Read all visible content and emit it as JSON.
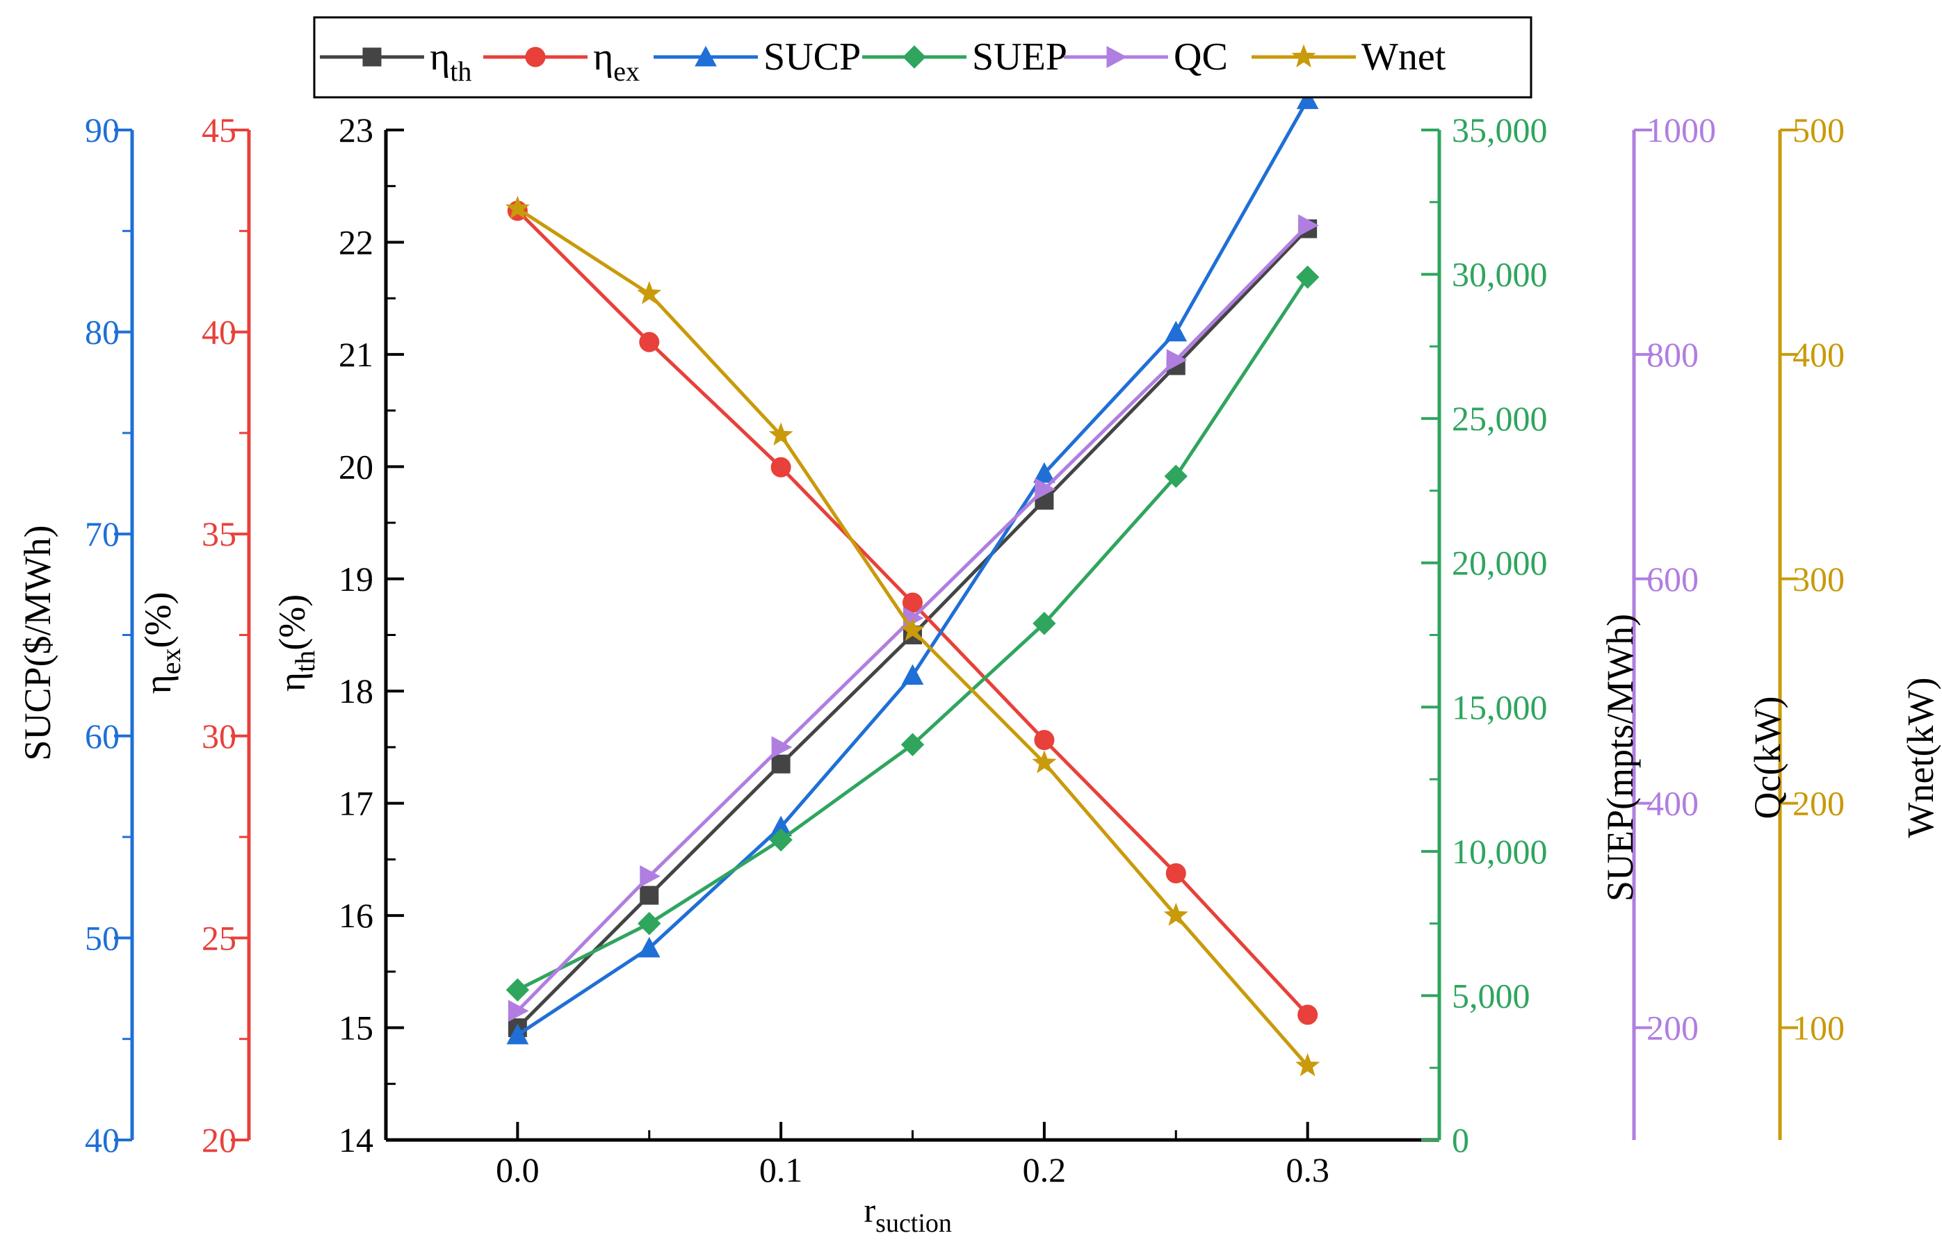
{
  "chart_data": {
    "type": "line",
    "x_label": "r",
    "x_label_sub": "suction",
    "x": [
      0.0,
      0.05,
      0.1,
      0.15,
      0.2,
      0.25,
      0.3
    ],
    "x_range": [
      -0.05,
      0.35
    ],
    "x_ticks": [
      0.0,
      0.1,
      0.2,
      0.3
    ],
    "x_tick_labels": [
      "0.0",
      "0.1",
      "0.2",
      "0.3"
    ],
    "grid": false,
    "legend_position": "top-center",
    "axes": [
      {
        "id": "eta_th",
        "label": "η",
        "label_sub": "th",
        "label_suffix": "(%)",
        "range": [
          14,
          23
        ],
        "ticks": [
          14,
          15,
          16,
          17,
          18,
          19,
          20,
          21,
          22,
          23
        ],
        "tick_labels": [
          "14",
          "15",
          "16",
          "17",
          "18",
          "19",
          "20",
          "21",
          "22",
          "23"
        ],
        "color": "#000000",
        "label_color": "#000000",
        "side": "left"
      },
      {
        "id": "eta_ex",
        "label": "η",
        "label_sub": "ex",
        "label_suffix": "(%)",
        "range": [
          20,
          45
        ],
        "ticks": [
          20,
          25,
          30,
          35,
          40,
          45
        ],
        "tick_labels": [
          "20",
          "25",
          "30",
          "35",
          "40",
          "45"
        ],
        "color": "#e8403a",
        "label_color": "#000000",
        "side": "left"
      },
      {
        "id": "sucp",
        "label": "SUCP($/MWh)",
        "range": [
          40,
          90
        ],
        "ticks": [
          40,
          50,
          60,
          70,
          80,
          90
        ],
        "tick_labels": [
          "40",
          "50",
          "60",
          "70",
          "80",
          "90"
        ],
        "color": "#1f6fd6",
        "label_color": "#000000",
        "side": "left"
      },
      {
        "id": "suep",
        "label": "SUEP(mpts/MWh)",
        "range": [
          0,
          35000
        ],
        "ticks": [
          0,
          5000,
          10000,
          15000,
          20000,
          25000,
          30000,
          35000
        ],
        "tick_labels": [
          "0",
          "5,000",
          "10,000",
          "15,000",
          "20,000",
          "25,000",
          "30,000",
          "35,000"
        ],
        "color": "#2fa55e",
        "label_color": "#000000",
        "side": "right"
      },
      {
        "id": "qc",
        "label": "Qc(kW)",
        "range": [
          100,
          1000
        ],
        "ticks": [
          200,
          400,
          600,
          800,
          1000
        ],
        "tick_labels": [
          "200",
          "400",
          "600",
          "800",
          "1000"
        ],
        "color": "#b07ee0",
        "label_color": "#000000",
        "side": "right"
      },
      {
        "id": "wnet",
        "label": "Wnet(kW)",
        "range": [
          50,
          500
        ],
        "ticks": [
          100,
          200,
          300,
          400,
          500
        ],
        "tick_labels": [
          "100",
          "200",
          "300",
          "400",
          "500"
        ],
        "color": "#c99a0a",
        "label_color": "#000000",
        "side": "right"
      }
    ],
    "series": [
      {
        "name": "η",
        "name_sub": "th",
        "axis": "eta_th",
        "color": "#444444",
        "marker": "square",
        "values": [
          15.0,
          16.18,
          17.35,
          18.5,
          19.7,
          20.9,
          22.12
        ]
      },
      {
        "name": "η",
        "name_sub": "ex",
        "axis": "eta_ex",
        "color": "#e8403a",
        "marker": "circle",
        "values": [
          43.0,
          39.75,
          36.65,
          33.3,
          29.9,
          26.6,
          23.1
        ]
      },
      {
        "name": "SUCP",
        "axis": "sucp",
        "color": "#1f6fd6",
        "marker": "triangle-up",
        "values": [
          45.2,
          49.5,
          55.5,
          63.0,
          73.0,
          80.0,
          91.5
        ]
      },
      {
        "name": "SUEP",
        "axis": "suep",
        "color": "#2fa55e",
        "marker": "diamond",
        "values": [
          5200,
          7500,
          10400,
          13700,
          17900,
          23000,
          29900
        ]
      },
      {
        "name": "QC",
        "axis": "qc",
        "color": "#b07ee0",
        "marker": "triangle-right",
        "values": [
          215,
          335,
          450,
          565,
          680,
          795,
          915
        ]
      },
      {
        "name": "Wnet",
        "axis": "wnet",
        "color": "#c99a0a",
        "marker": "star",
        "values": [
          465,
          427,
          364,
          277,
          218,
          150,
          83
        ]
      }
    ]
  }
}
